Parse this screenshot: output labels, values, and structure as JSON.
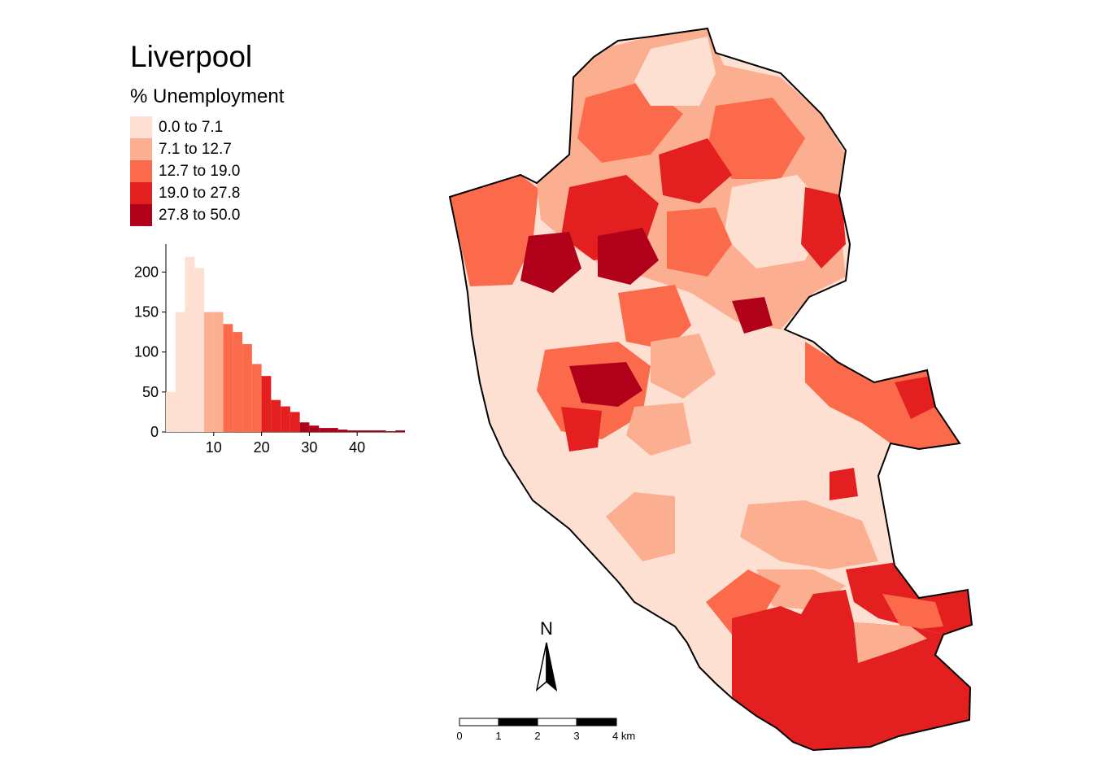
{
  "map": {
    "title": "Liverpool",
    "legend_title": "% Unemployment",
    "legend": [
      {
        "label": "0.0 to 7.1",
        "color": "#fee0d2"
      },
      {
        "label": "7.1 to 12.7",
        "color": "#fcae91"
      },
      {
        "label": "12.7 to 19.0",
        "color": "#fb6a4a"
      },
      {
        "label": "19.0 to 27.8",
        "color": "#e3201f"
      },
      {
        "label": "27.8 to 50.0",
        "color": "#b0001a"
      }
    ],
    "north_arrow_label": "N",
    "scale_bar": {
      "labels": [
        "0",
        "1",
        "2",
        "3",
        "4 km"
      ]
    },
    "colors": {
      "outline": "#000000"
    }
  },
  "chart_data": {
    "type": "bar",
    "title": "",
    "xlabel": "",
    "ylabel": "",
    "bin_width": 2,
    "x": [
      1,
      3,
      5,
      7,
      9,
      11,
      13,
      15,
      17,
      19,
      21,
      23,
      25,
      27,
      29,
      31,
      33,
      35,
      37,
      39,
      41,
      43,
      45,
      47,
      49
    ],
    "values": [
      50,
      150,
      219,
      205,
      150,
      150,
      135,
      125,
      110,
      85,
      70,
      40,
      32,
      25,
      12,
      8,
      5,
      5,
      3,
      2,
      2,
      2,
      2,
      1,
      2
    ],
    "xlim": [
      0,
      50
    ],
    "ylim": [
      0,
      235
    ],
    "x_ticks": [
      10,
      20,
      30,
      40
    ],
    "y_ticks": [
      0,
      50,
      100,
      150,
      200
    ],
    "class_breaks": [
      7.1,
      12.7,
      19.0,
      27.8,
      50.0
    ]
  }
}
